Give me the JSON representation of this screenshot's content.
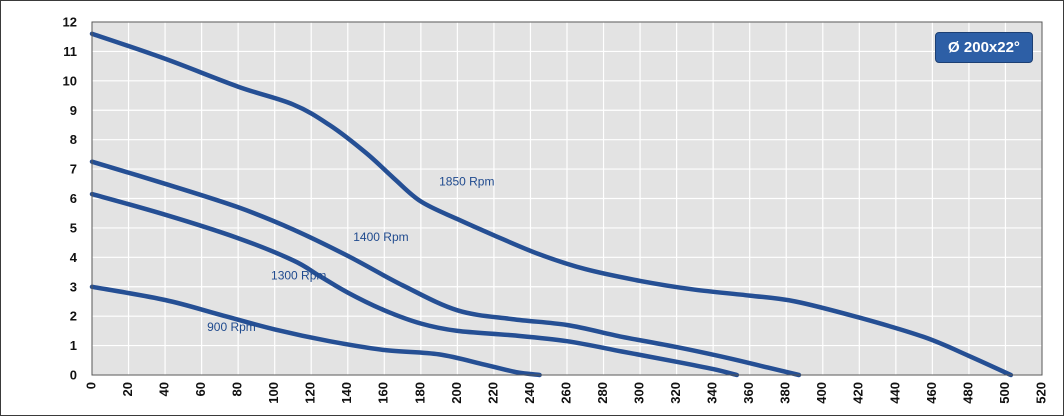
{
  "colors": {
    "plot_bg": "#e3e3e3",
    "grid": "#ffffff",
    "line": "#254f94",
    "label": "#1f4a8e",
    "badge_bg": "#2d5fa6",
    "tick_text": "#111111"
  },
  "badge": {
    "text": "Ø 200x22°"
  },
  "chart_data": {
    "type": "line",
    "title": "",
    "xlabel": "",
    "ylabel": "",
    "xlim": [
      0,
      520
    ],
    "ylim": [
      0,
      12
    ],
    "xticks": [
      0,
      20,
      40,
      60,
      80,
      100,
      120,
      140,
      160,
      180,
      200,
      220,
      240,
      260,
      280,
      300,
      320,
      340,
      360,
      380,
      400,
      420,
      440,
      460,
      480,
      500,
      520
    ],
    "yticks": [
      0,
      1,
      2,
      3,
      4,
      5,
      6,
      7,
      8,
      9,
      10,
      11,
      12
    ],
    "grid": true,
    "series": [
      {
        "name": "1850 Rpm",
        "points": [
          [
            0,
            11.6
          ],
          [
            40,
            10.75
          ],
          [
            80,
            9.8
          ],
          [
            110,
            9.2
          ],
          [
            130,
            8.5
          ],
          [
            150,
            7.55
          ],
          [
            165,
            6.7
          ],
          [
            180,
            5.9
          ],
          [
            200,
            5.3
          ],
          [
            220,
            4.75
          ],
          [
            245,
            4.1
          ],
          [
            270,
            3.6
          ],
          [
            300,
            3.2
          ],
          [
            330,
            2.9
          ],
          [
            360,
            2.7
          ],
          [
            385,
            2.5
          ],
          [
            420,
            1.95
          ],
          [
            455,
            1.3
          ],
          [
            480,
            0.65
          ],
          [
            503,
            0.0
          ]
        ]
      },
      {
        "name": "1400 Rpm",
        "points": [
          [
            0,
            7.25
          ],
          [
            40,
            6.5
          ],
          [
            80,
            5.7
          ],
          [
            110,
            4.95
          ],
          [
            140,
            4.05
          ],
          [
            170,
            3.05
          ],
          [
            200,
            2.2
          ],
          [
            230,
            1.9
          ],
          [
            260,
            1.7
          ],
          [
            290,
            1.3
          ],
          [
            320,
            0.95
          ],
          [
            350,
            0.55
          ],
          [
            370,
            0.25
          ],
          [
            387,
            0.0
          ]
        ]
      },
      {
        "name": "1300 Rpm",
        "points": [
          [
            0,
            6.15
          ],
          [
            40,
            5.45
          ],
          [
            80,
            4.65
          ],
          [
            110,
            3.9
          ],
          [
            125,
            3.35
          ],
          [
            140,
            2.8
          ],
          [
            160,
            2.2
          ],
          [
            180,
            1.75
          ],
          [
            200,
            1.5
          ],
          [
            230,
            1.35
          ],
          [
            260,
            1.15
          ],
          [
            290,
            0.8
          ],
          [
            320,
            0.45
          ],
          [
            340,
            0.2
          ],
          [
            353,
            0.0
          ]
        ]
      },
      {
        "name": "900 Rpm",
        "points": [
          [
            0,
            3.0
          ],
          [
            40,
            2.55
          ],
          [
            70,
            2.05
          ],
          [
            100,
            1.55
          ],
          [
            130,
            1.15
          ],
          [
            160,
            0.85
          ],
          [
            190,
            0.7
          ],
          [
            215,
            0.35
          ],
          [
            232,
            0.1
          ],
          [
            245,
            0.0
          ]
        ]
      }
    ],
    "annotations": [
      {
        "text": "1850 Rpm",
        "x": 190,
        "y": 6.45
      },
      {
        "text": "1400 Rpm",
        "x": 143,
        "y": 4.55
      },
      {
        "text": "1300 Rpm",
        "x": 98,
        "y": 3.25
      },
      {
        "text": "900 Rpm",
        "x": 63,
        "y": 1.5
      }
    ]
  }
}
